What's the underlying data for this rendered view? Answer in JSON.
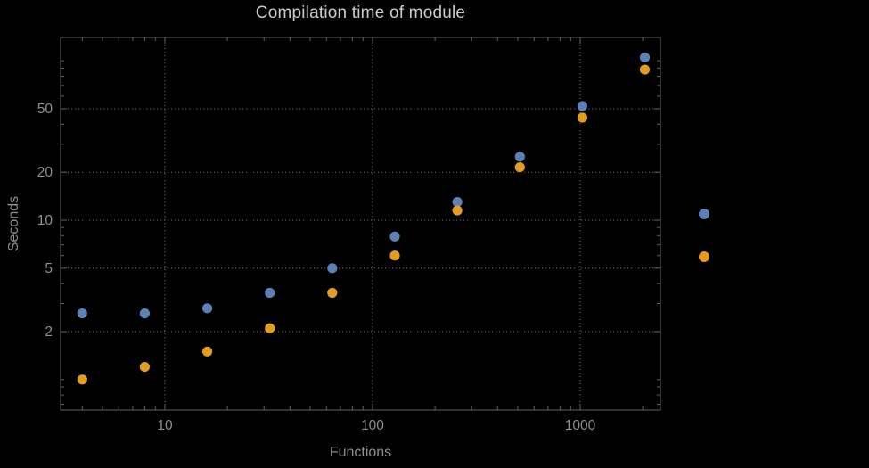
{
  "chart_data": {
    "type": "scatter",
    "title": "Compilation time of module",
    "xlabel": "Functions",
    "ylabel": "Seconds",
    "x_scale": "log",
    "y_scale": "log",
    "grid": "dotted",
    "x_ticks": [
      10,
      100,
      1000
    ],
    "y_ticks": [
      2,
      5,
      10,
      20,
      50
    ],
    "xlim": [
      3.2,
      2430
    ],
    "ylim": [
      0.65,
      140
    ],
    "x": [
      4,
      8,
      16,
      32,
      64,
      128,
      256,
      512,
      1024,
      2048
    ],
    "series": [
      {
        "name": "series-blue",
        "color": "#5E81B5",
        "values": [
          2.6,
          2.6,
          2.8,
          3.5,
          5.0,
          7.9,
          13,
          25,
          52,
          105
        ]
      },
      {
        "name": "series-orange",
        "color": "#E09C24",
        "values": [
          1.0,
          1.2,
          1.5,
          2.1,
          3.5,
          6.0,
          11.5,
          21.5,
          44,
          88
        ]
      }
    ],
    "legend": {
      "position": "right",
      "markers": [
        {
          "name": "legend-marker-blue",
          "color": "#5E81B5"
        },
        {
          "name": "legend-marker-orange",
          "color": "#E09C24"
        }
      ]
    },
    "colors": {
      "background": "#000000",
      "grid": "#6e6e6e",
      "frame": "#62626a",
      "tick_labels": "#8e8e93",
      "axis_labels": "#8e8e93",
      "title": "#cbccce"
    }
  }
}
